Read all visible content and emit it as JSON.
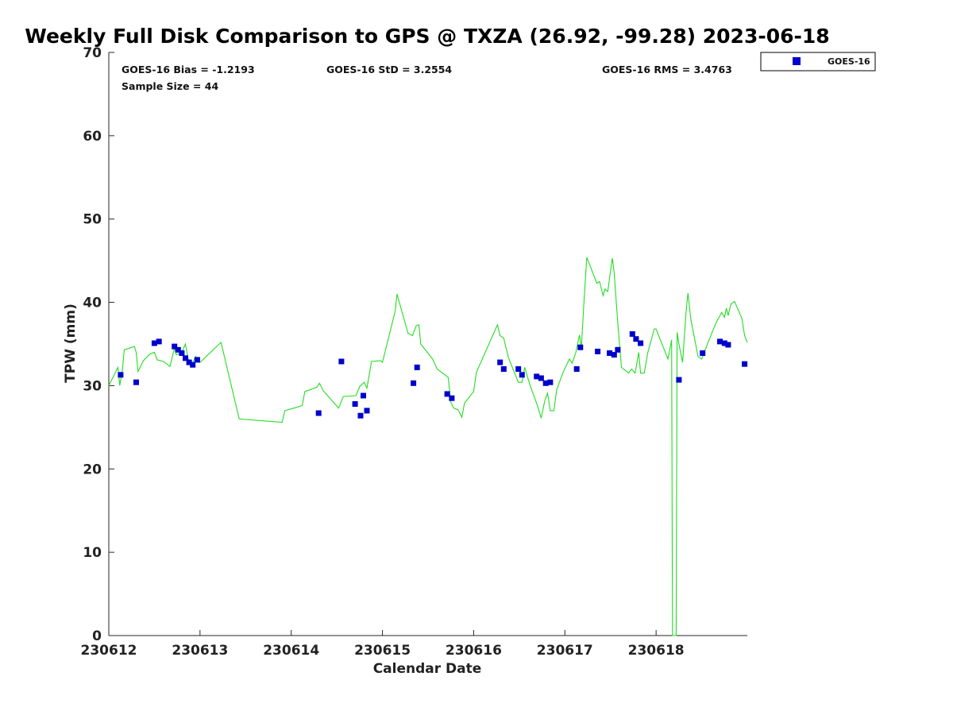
{
  "chart_data": {
    "type": "line",
    "title": "Weekly Full Disk Comparison to GPS @ TXZA (26.92, -99.28) 2023-06-18",
    "xlabel": "Calendar Date",
    "ylabel": "TPW (mm)",
    "xlim": [
      0,
      7
    ],
    "ylim": [
      0,
      70
    ],
    "x_ticks": [
      {
        "v": 0,
        "label": "230612"
      },
      {
        "v": 1,
        "label": "230613"
      },
      {
        "v": 2,
        "label": "230614"
      },
      {
        "v": 3,
        "label": "230615"
      },
      {
        "v": 4,
        "label": "230616"
      },
      {
        "v": 5,
        "label": "230617"
      },
      {
        "v": 6,
        "label": "230618"
      }
    ],
    "y_ticks": [
      {
        "v": 0,
        "label": "0"
      },
      {
        "v": 10,
        "label": "10"
      },
      {
        "v": 20,
        "label": "20"
      },
      {
        "v": 30,
        "label": "30"
      },
      {
        "v": 40,
        "label": "40"
      },
      {
        "v": 50,
        "label": "50"
      },
      {
        "v": 60,
        "label": "60"
      },
      {
        "v": 70,
        "label": "70"
      }
    ],
    "grid": false,
    "legend_position": "top-right",
    "stats": {
      "bias": "GOES-16 Bias = -1.2193",
      "std": "GOES-16 StD = 3.2554",
      "rms": "GOES-16 RMS = 3.4763",
      "sample": "Sample Size = 44"
    },
    "series": [
      {
        "kind": "line",
        "color": "#22dd22",
        "points": [
          [
            0.0,
            30.0
          ],
          [
            0.1,
            32.2
          ],
          [
            0.12,
            30.0
          ],
          [
            0.15,
            32.0
          ],
          [
            0.17,
            34.3
          ],
          [
            0.28,
            34.7
          ],
          [
            0.3,
            34.0
          ],
          [
            0.32,
            31.7
          ],
          [
            0.38,
            33.0
          ],
          [
            0.45,
            33.8
          ],
          [
            0.5,
            34.0
          ],
          [
            0.53,
            33.1
          ],
          [
            0.6,
            32.9
          ],
          [
            0.67,
            32.3
          ],
          [
            0.72,
            34.5
          ],
          [
            0.74,
            33.7
          ],
          [
            0.8,
            34.0
          ],
          [
            0.84,
            35.0
          ],
          [
            0.87,
            33.2
          ],
          [
            0.92,
            32.7
          ],
          [
            0.95,
            33.5
          ],
          [
            1.0,
            32.8
          ],
          [
            1.23,
            35.2
          ],
          [
            1.43,
            26.0
          ],
          [
            1.9,
            25.6
          ],
          [
            1.93,
            27.0
          ],
          [
            2.03,
            27.3
          ],
          [
            2.12,
            27.6
          ],
          [
            2.15,
            29.3
          ],
          [
            2.28,
            29.8
          ],
          [
            2.31,
            30.3
          ],
          [
            2.35,
            29.4
          ],
          [
            2.52,
            27.3
          ],
          [
            2.57,
            28.7
          ],
          [
            2.71,
            28.8
          ],
          [
            2.75,
            29.9
          ],
          [
            2.8,
            30.4
          ],
          [
            2.83,
            29.7
          ],
          [
            2.88,
            32.9
          ],
          [
            2.98,
            33.0
          ],
          [
            3.0,
            32.8
          ],
          [
            3.14,
            39.0
          ],
          [
            3.16,
            41.0
          ],
          [
            3.28,
            36.3
          ],
          [
            3.33,
            36.0
          ],
          [
            3.37,
            37.2
          ],
          [
            3.4,
            37.3
          ],
          [
            3.42,
            35.0
          ],
          [
            3.55,
            33.2
          ],
          [
            3.6,
            32.0
          ],
          [
            3.72,
            31.0
          ],
          [
            3.75,
            28.0
          ],
          [
            3.78,
            27.3
          ],
          [
            3.83,
            27.1
          ],
          [
            3.87,
            26.2
          ],
          [
            3.9,
            27.9
          ],
          [
            4.0,
            29.3
          ],
          [
            4.03,
            31.6
          ],
          [
            4.26,
            37.3
          ],
          [
            4.29,
            36.0
          ],
          [
            4.33,
            35.7
          ],
          [
            4.38,
            33.4
          ],
          [
            4.49,
            30.4
          ],
          [
            4.53,
            30.4
          ],
          [
            4.56,
            32.2
          ],
          [
            4.62,
            30.0
          ],
          [
            4.7,
            27.6
          ],
          [
            4.74,
            26.1
          ],
          [
            4.78,
            28.2
          ],
          [
            4.81,
            29.1
          ],
          [
            4.84,
            27.0
          ],
          [
            4.88,
            27.0
          ],
          [
            4.91,
            29.5
          ],
          [
            4.98,
            31.6
          ],
          [
            5.05,
            33.2
          ],
          [
            5.08,
            32.7
          ],
          [
            5.12,
            34.0
          ],
          [
            5.16,
            36.1
          ],
          [
            5.18,
            34.5
          ],
          [
            5.21,
            40.2
          ],
          [
            5.24,
            45.4
          ],
          [
            5.35,
            42.3
          ],
          [
            5.38,
            42.5
          ],
          [
            5.42,
            40.8
          ],
          [
            5.44,
            41.6
          ],
          [
            5.47,
            41.3
          ],
          [
            5.52,
            45.3
          ],
          [
            5.54,
            43.6
          ],
          [
            5.58,
            37.5
          ],
          [
            5.62,
            32.2
          ],
          [
            5.7,
            31.5
          ],
          [
            5.73,
            32.0
          ],
          [
            5.77,
            31.5
          ],
          [
            5.81,
            34.0
          ],
          [
            5.83,
            31.5
          ],
          [
            5.87,
            31.5
          ],
          [
            5.91,
            34.0
          ],
          [
            5.98,
            36.8
          ],
          [
            6.0,
            36.8
          ],
          [
            6.05,
            35.4
          ],
          [
            6.13,
            33.2
          ],
          [
            6.17,
            35.5
          ],
          [
            6.18,
            0.0
          ],
          [
            6.22,
            0.0
          ],
          [
            6.23,
            36.4
          ],
          [
            6.25,
            35.0
          ],
          [
            6.29,
            32.8
          ],
          [
            6.33,
            39.0
          ],
          [
            6.35,
            41.1
          ],
          [
            6.38,
            38.0
          ],
          [
            6.46,
            33.5
          ],
          [
            6.5,
            33.2
          ],
          [
            6.57,
            35.2
          ],
          [
            6.66,
            37.6
          ],
          [
            6.72,
            38.8
          ],
          [
            6.75,
            38.2
          ],
          [
            6.77,
            39.3
          ],
          [
            6.79,
            38.4
          ],
          [
            6.82,
            39.8
          ],
          [
            6.86,
            40.1
          ],
          [
            6.94,
            38.1
          ],
          [
            6.97,
            36.0
          ],
          [
            7.0,
            35.2
          ]
        ]
      },
      {
        "kind": "scatter",
        "name": "GOES-16",
        "color": "#0000cc",
        "points": [
          [
            0.13,
            31.3
          ],
          [
            0.3,
            30.4
          ],
          [
            0.5,
            35.1
          ],
          [
            0.55,
            35.3
          ],
          [
            0.72,
            34.7
          ],
          [
            0.76,
            34.3
          ],
          [
            0.8,
            33.9
          ],
          [
            0.84,
            33.3
          ],
          [
            0.88,
            32.8
          ],
          [
            0.92,
            32.5
          ],
          [
            0.97,
            33.1
          ],
          [
            2.3,
            26.7
          ],
          [
            2.55,
            32.9
          ],
          [
            2.7,
            27.8
          ],
          [
            2.76,
            26.4
          ],
          [
            2.79,
            28.8
          ],
          [
            2.83,
            27.0
          ],
          [
            3.34,
            30.3
          ],
          [
            3.38,
            32.2
          ],
          [
            3.71,
            29.0
          ],
          [
            3.76,
            28.5
          ],
          [
            4.29,
            32.8
          ],
          [
            4.33,
            32.0
          ],
          [
            4.49,
            32.0
          ],
          [
            4.53,
            31.3
          ],
          [
            4.69,
            31.1
          ],
          [
            4.74,
            30.9
          ],
          [
            4.79,
            30.3
          ],
          [
            4.84,
            30.4
          ],
          [
            5.13,
            32.0
          ],
          [
            5.17,
            34.6
          ],
          [
            5.36,
            34.1
          ],
          [
            5.49,
            33.9
          ],
          [
            5.54,
            33.7
          ],
          [
            5.58,
            34.3
          ],
          [
            5.74,
            36.2
          ],
          [
            5.78,
            35.6
          ],
          [
            5.83,
            35.1
          ],
          [
            6.25,
            30.7
          ],
          [
            6.51,
            33.9
          ],
          [
            6.7,
            35.3
          ],
          [
            6.75,
            35.1
          ],
          [
            6.79,
            34.9
          ],
          [
            6.97,
            32.6
          ]
        ]
      }
    ]
  }
}
